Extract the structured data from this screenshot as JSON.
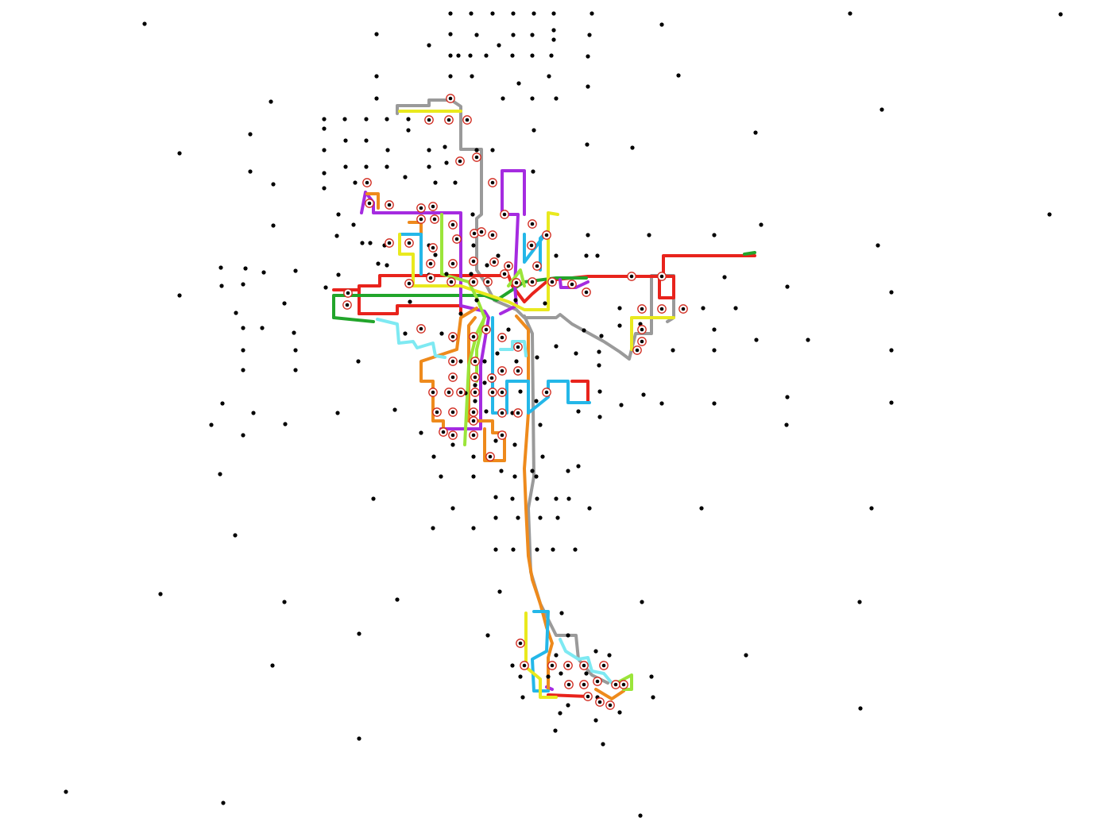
{
  "map": {
    "background": "#ffffff",
    "stop_color": "#000000",
    "hub_ring_color": "#d12a1f",
    "route_colors": {
      "red": "#e8231c",
      "green": "#22a52b",
      "purple": "#a52be0",
      "orange": "#ee8a1c",
      "cyan": "#24b7e8",
      "light_cyan": "#7ee9f2",
      "yellow": "#e9e91e",
      "lime": "#9be53a",
      "gray": "#9a9a9a"
    }
  }
}
